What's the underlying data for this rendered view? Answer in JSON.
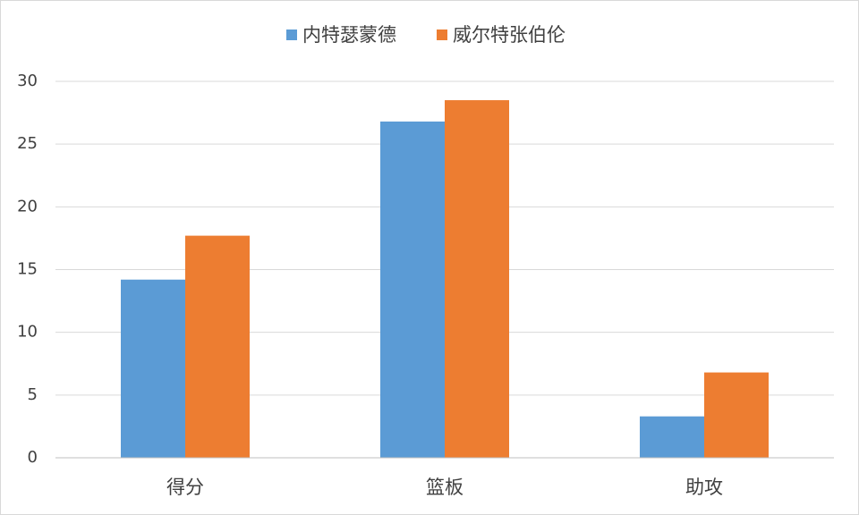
{
  "chart_data": {
    "type": "bar",
    "categories": [
      "得分",
      "篮板",
      "助攻"
    ],
    "series": [
      {
        "name": "内特瑟蒙德",
        "color": "#5b9bd5",
        "values": [
          14.2,
          26.8,
          3.3
        ]
      },
      {
        "name": "威尔特张伯伦",
        "color": "#ed7d31",
        "values": [
          17.7,
          28.5,
          6.8
        ]
      }
    ],
    "ylim": [
      0,
      30
    ],
    "yticks": [
      0,
      5,
      10,
      15,
      20,
      25,
      30
    ],
    "grid": true,
    "legend": "top"
  }
}
